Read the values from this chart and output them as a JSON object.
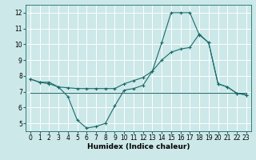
{
  "xlabel": "Humidex (Indice chaleur)",
  "xlim": [
    -0.5,
    23.5
  ],
  "ylim": [
    4.5,
    12.5
  ],
  "yticks": [
    5,
    6,
    7,
    8,
    9,
    10,
    11,
    12
  ],
  "xticks": [
    0,
    1,
    2,
    3,
    4,
    5,
    6,
    7,
    8,
    9,
    10,
    11,
    12,
    13,
    14,
    15,
    16,
    17,
    18,
    19,
    20,
    21,
    22,
    23
  ],
  "bg_color": "#cce8e8",
  "line_color": "#1a6b6b",
  "grid_color": "#ffffff",
  "line1_x": [
    0,
    1,
    2,
    3,
    4,
    5,
    6,
    7,
    8,
    9,
    10,
    11,
    12,
    13,
    14,
    15,
    16,
    17,
    18,
    19,
    20,
    21,
    22,
    23
  ],
  "line1_y": [
    7.8,
    7.6,
    7.6,
    7.3,
    6.7,
    5.2,
    4.7,
    4.8,
    5.0,
    6.1,
    7.1,
    7.2,
    7.4,
    8.3,
    10.1,
    12.0,
    12.0,
    12.0,
    10.6,
    10.1,
    7.5,
    7.3,
    6.9,
    6.8
  ],
  "line2_x": [
    0,
    1,
    2,
    3,
    4,
    5,
    6,
    7,
    8,
    9,
    10,
    11,
    12,
    13,
    14,
    15,
    16,
    17,
    18,
    19,
    20,
    21,
    22,
    23
  ],
  "line2_y": [
    7.8,
    7.6,
    7.5,
    7.3,
    7.25,
    7.2,
    7.2,
    7.2,
    7.2,
    7.2,
    7.5,
    7.7,
    7.9,
    8.3,
    9.0,
    9.5,
    9.7,
    9.8,
    10.65,
    10.1,
    7.5,
    7.3,
    6.9,
    6.8
  ],
  "line3_x": [
    0,
    23
  ],
  "line3_y": [
    6.95,
    6.95
  ],
  "tick_fontsize": 5.5,
  "xlabel_fontsize": 6.5
}
